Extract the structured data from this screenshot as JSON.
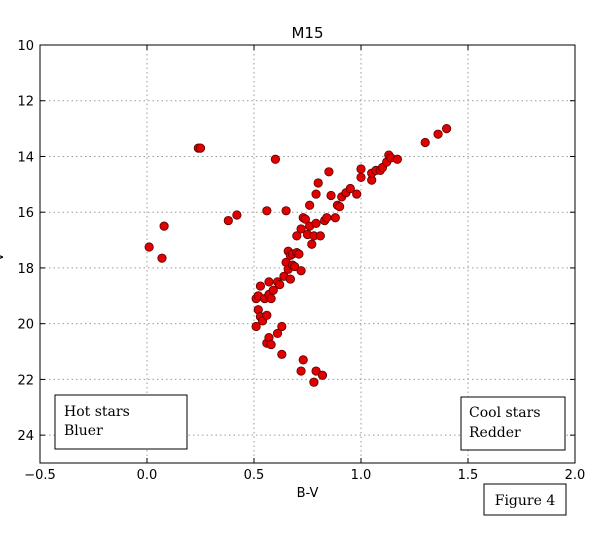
{
  "chart_data": {
    "type": "scatter",
    "title": "M15",
    "xlabel": "B-V",
    "ylabel": "V",
    "xlim": [
      -0.5,
      2.0
    ],
    "ylim": [
      25,
      10
    ],
    "y_inverted": true,
    "grid": true,
    "x_ticks": [
      "−0.5",
      "0.0",
      "0.5",
      "1.0",
      "1.5",
      "2.0"
    ],
    "x_tick_values": [
      -0.5,
      0.0,
      0.5,
      1.0,
      1.5,
      2.0
    ],
    "y_ticks": [
      "10",
      "12",
      "14",
      "16",
      "18",
      "20",
      "22",
      "24"
    ],
    "y_tick_values": [
      10,
      12,
      14,
      16,
      18,
      20,
      22,
      24
    ],
    "marker_color": "#e00000",
    "annotations": {
      "left_box": [
        "Hot stars",
        "Bluer"
      ],
      "right_box": [
        "Cool stars",
        "Redder"
      ],
      "figure_label": "Figure 4"
    },
    "points": [
      [
        0.24,
        13.7
      ],
      [
        0.25,
        13.7
      ],
      [
        0.6,
        14.1
      ],
      [
        0.01,
        17.25
      ],
      [
        0.07,
        17.65
      ],
      [
        0.08,
        16.5
      ],
      [
        0.38,
        16.3
      ],
      [
        0.42,
        16.1
      ],
      [
        0.56,
        15.95
      ],
      [
        0.65,
        15.95
      ],
      [
        0.51,
        19.1
      ],
      [
        0.52,
        19.0
      ],
      [
        0.53,
        18.65
      ],
      [
        0.55,
        19.1
      ],
      [
        0.57,
        18.95
      ],
      [
        0.57,
        18.5
      ],
      [
        0.58,
        19.1
      ],
      [
        0.59,
        18.8
      ],
      [
        0.61,
        18.5
      ],
      [
        0.62,
        18.6
      ],
      [
        0.51,
        20.1
      ],
      [
        0.52,
        19.5
      ],
      [
        0.53,
        19.75
      ],
      [
        0.54,
        19.9
      ],
      [
        0.56,
        19.7
      ],
      [
        0.56,
        20.7
      ],
      [
        0.57,
        20.5
      ],
      [
        0.58,
        20.75
      ],
      [
        0.61,
        20.35
      ],
      [
        0.63,
        20.1
      ],
      [
        0.63,
        21.1
      ],
      [
        0.73,
        21.3
      ],
      [
        0.72,
        21.7
      ],
      [
        0.78,
        22.1
      ],
      [
        0.79,
        21.7
      ],
      [
        0.82,
        21.85
      ],
      [
        0.64,
        18.3
      ],
      [
        0.65,
        17.8
      ],
      [
        0.66,
        18.05
      ],
      [
        0.66,
        17.4
      ],
      [
        0.67,
        18.4
      ],
      [
        0.67,
        17.55
      ],
      [
        0.68,
        17.9
      ],
      [
        0.68,
        17.5
      ],
      [
        0.69,
        17.95
      ],
      [
        0.7,
        17.45
      ],
      [
        0.7,
        16.85
      ],
      [
        0.71,
        17.5
      ],
      [
        0.72,
        18.1
      ],
      [
        0.72,
        16.6
      ],
      [
        0.73,
        16.2
      ],
      [
        0.74,
        16.25
      ],
      [
        0.75,
        16.8
      ],
      [
        0.76,
        16.5
      ],
      [
        0.76,
        15.75
      ],
      [
        0.77,
        17.15
      ],
      [
        0.78,
        16.85
      ],
      [
        0.79,
        16.4
      ],
      [
        0.79,
        15.35
      ],
      [
        0.8,
        14.95
      ],
      [
        0.81,
        16.85
      ],
      [
        0.83,
        16.3
      ],
      [
        0.84,
        16.2
      ],
      [
        0.85,
        14.55
      ],
      [
        0.86,
        15.4
      ],
      [
        0.88,
        16.2
      ],
      [
        0.89,
        15.75
      ],
      [
        0.9,
        15.8
      ],
      [
        0.91,
        15.45
      ],
      [
        0.93,
        15.3
      ],
      [
        0.95,
        15.15
      ],
      [
        0.98,
        15.35
      ],
      [
        1.0,
        14.45
      ],
      [
        1.0,
        14.75
      ],
      [
        1.05,
        14.85
      ],
      [
        1.05,
        14.6
      ],
      [
        1.07,
        14.5
      ],
      [
        1.09,
        14.5
      ],
      [
        1.1,
        14.4
      ],
      [
        1.12,
        14.2
      ],
      [
        1.13,
        13.95
      ],
      [
        1.14,
        14.05
      ],
      [
        1.17,
        14.1
      ],
      [
        1.3,
        13.5
      ],
      [
        1.36,
        13.2
      ],
      [
        1.4,
        13.0
      ]
    ]
  }
}
